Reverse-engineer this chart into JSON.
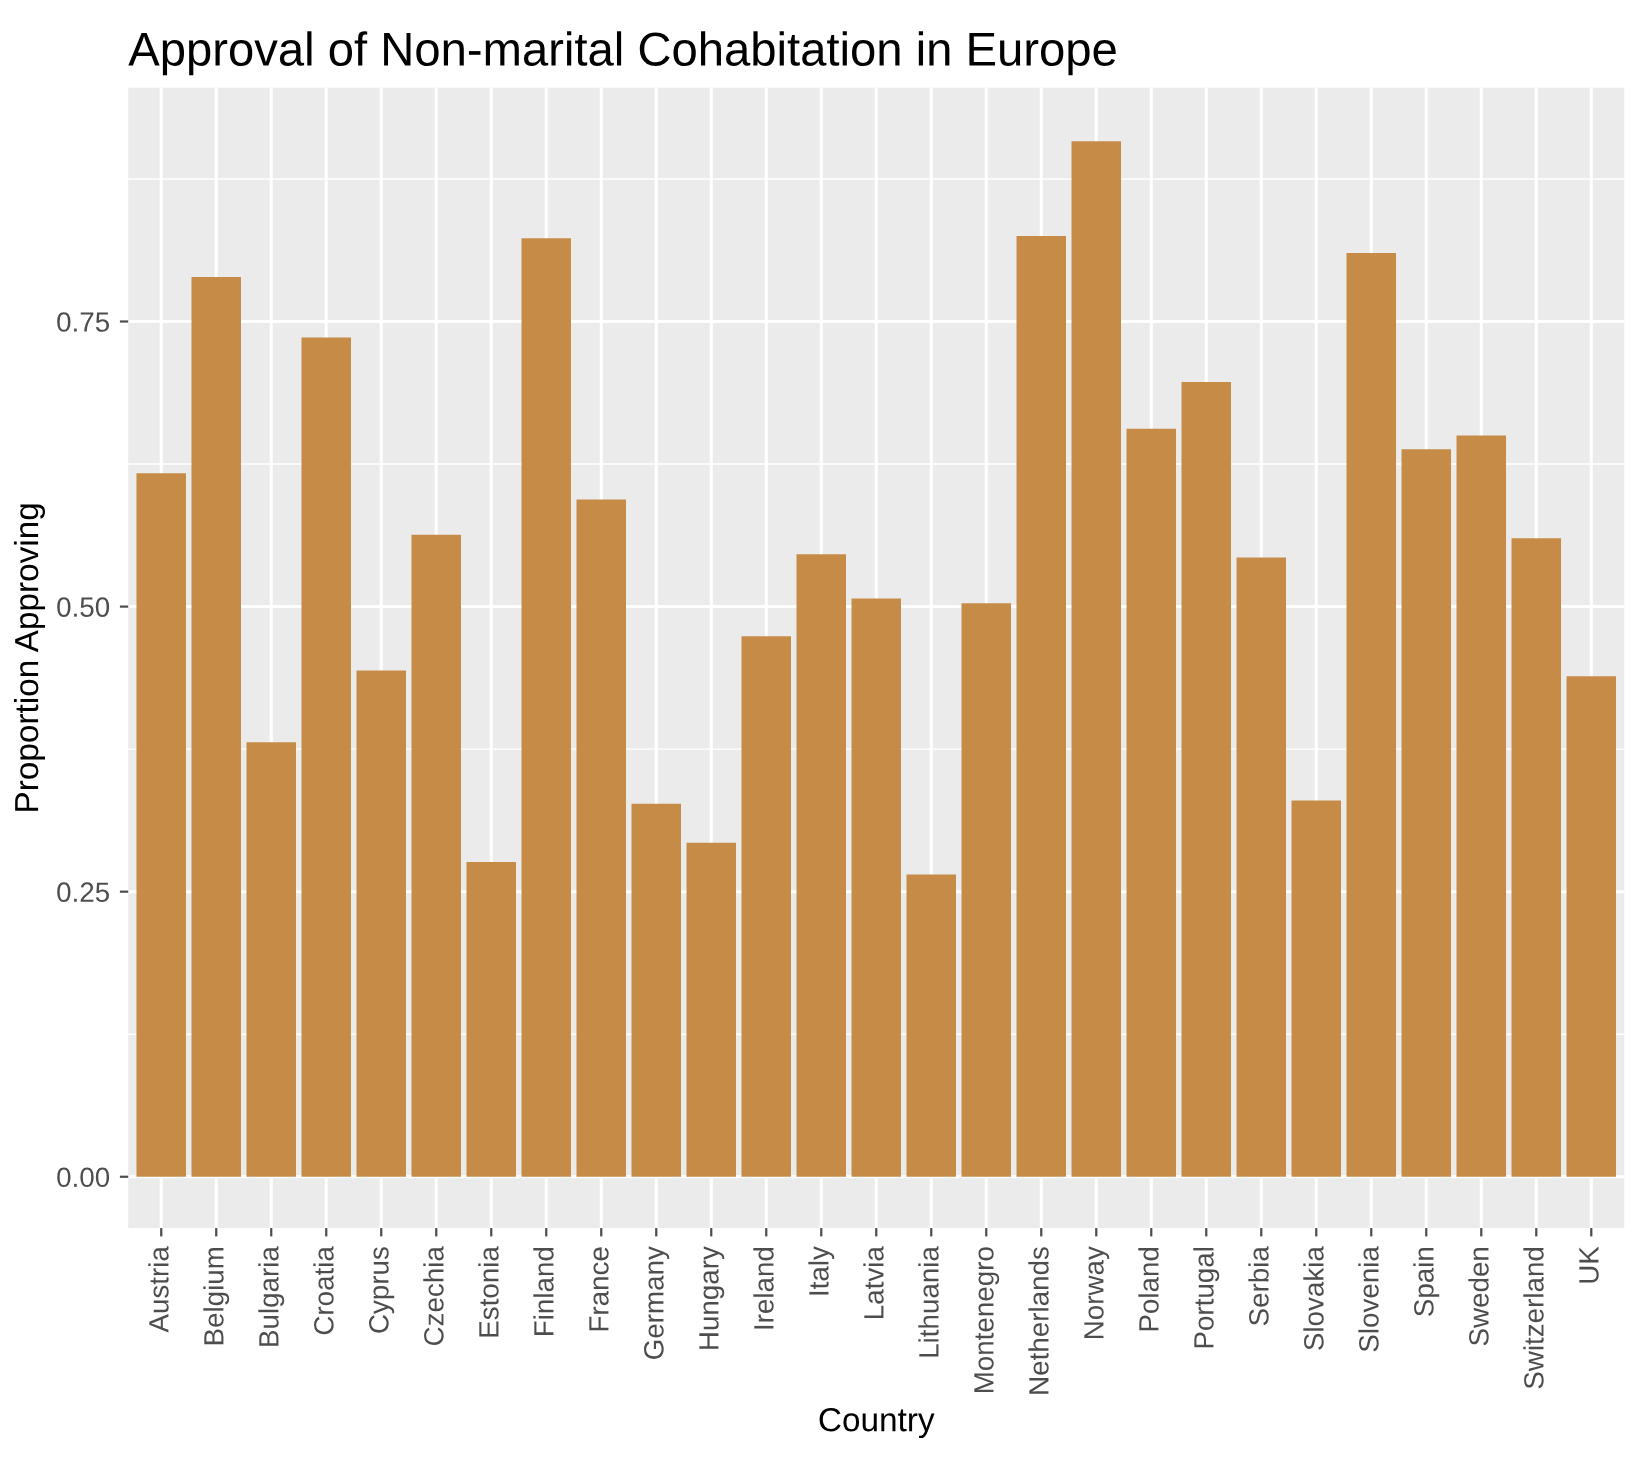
{
  "chart_data": {
    "type": "bar",
    "title": "Approval of Non-marital Cohabitation in Europe",
    "xlabel": "Country",
    "ylabel": "Proportion Approving",
    "categories": [
      "Austria",
      "Belgium",
      "Bulgaria",
      "Croatia",
      "Cyprus",
      "Czechia",
      "Estonia",
      "Finland",
      "France",
      "Germany",
      "Hungary",
      "Ireland",
      "Italy",
      "Latvia",
      "Lithuania",
      "Montenegro",
      "Netherlands",
      "Norway",
      "Poland",
      "Portugal",
      "Serbia",
      "Slovakia",
      "Slovenia",
      "Spain",
      "Sweden",
      "Switzerland",
      "UK"
    ],
    "values": [
      0.617,
      0.789,
      0.381,
      0.736,
      0.444,
      0.563,
      0.276,
      0.823,
      0.594,
      0.327,
      0.293,
      0.474,
      0.546,
      0.507,
      0.265,
      0.503,
      0.825,
      0.908,
      0.656,
      0.697,
      0.543,
      0.33,
      0.81,
      0.638,
      0.65,
      0.56,
      0.439
    ],
    "color": "#c68c47",
    "ylim": [
      -0.045,
      0.955
    ],
    "yticks": [
      {
        "value": 0,
        "label": "0.00"
      },
      {
        "value": 0.25,
        "label": "0.25"
      },
      {
        "value": 0.5,
        "label": "0.50"
      },
      {
        "value": 0.75,
        "label": "0.75"
      }
    ],
    "grid": true
  }
}
